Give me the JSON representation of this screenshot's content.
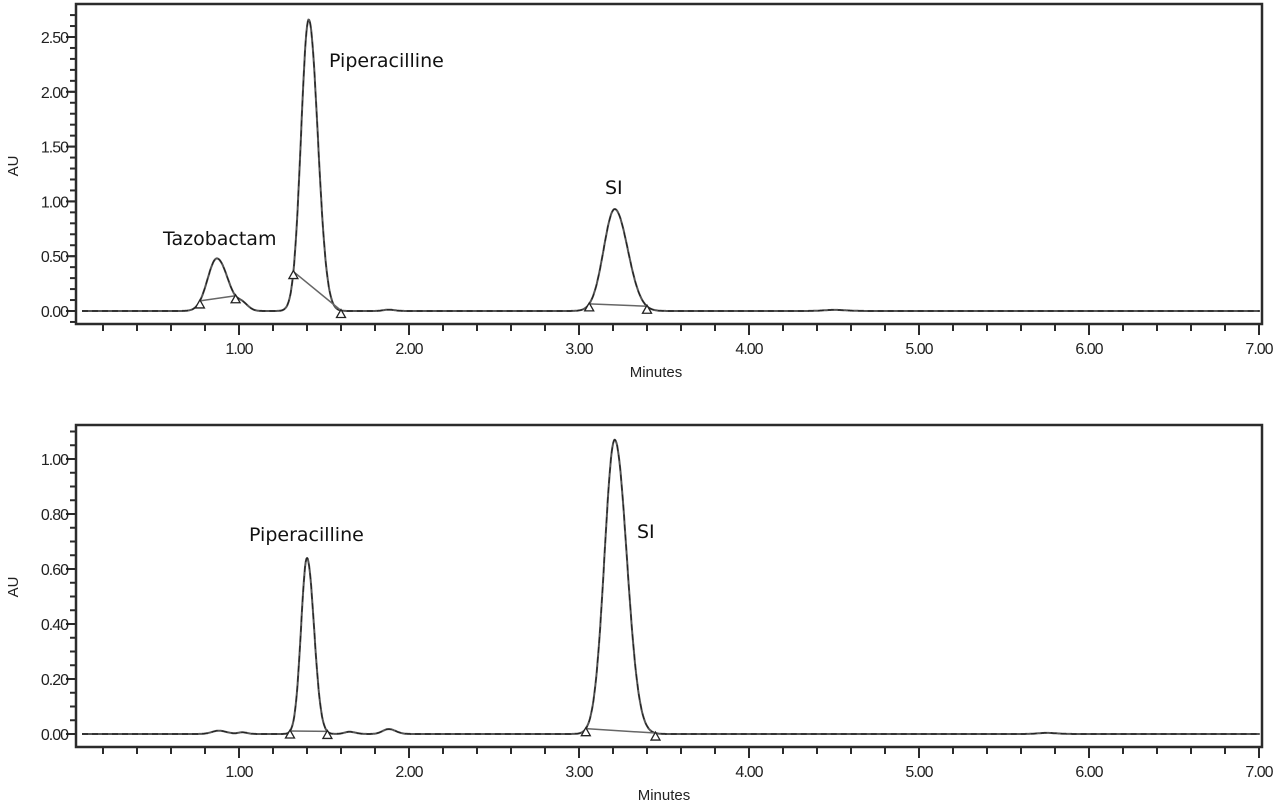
{
  "chart_data": [
    {
      "type": "line",
      "panel": "top",
      "title": "",
      "xlabel": "Minutes",
      "ylabel": "AU",
      "xlim": [
        0.04,
        7.02
      ],
      "ylim": [
        -0.12,
        2.78
      ],
      "x_ticks": [
        "1.00",
        "2.00",
        "3.00",
        "4.00",
        "5.00",
        "6.00",
        "7.00"
      ],
      "x_tick_values": [
        1,
        2,
        3,
        4,
        5,
        6,
        7
      ],
      "x_minor_step": 0.2,
      "y_ticks": [
        "0.00",
        "0.50",
        "1.00",
        "1.50",
        "2.00",
        "2.50"
      ],
      "y_tick_values": [
        0,
        0.5,
        1.0,
        1.5,
        2.0,
        2.5
      ],
      "y_minor_step": 0.1,
      "grid": false,
      "peaks": [
        {
          "name": "Tazobactam",
          "retention_time": 0.87,
          "height": 0.48,
          "width": 0.055,
          "label": "Tazobactam",
          "label_pos": [
            0.6,
            0.64
          ],
          "integration_markers": [
            0.77,
            0.98
          ]
        },
        {
          "name": "minor",
          "retention_time": 1.02,
          "height": 0.06,
          "width": 0.03
        },
        {
          "name": "Piperacilline",
          "retention_time": 1.41,
          "height": 2.66,
          "width": 0.045,
          "label": "Piperacilline",
          "label_pos": [
            1.55,
            2.25
          ],
          "integration_markers": [
            1.32,
            1.6
          ]
        },
        {
          "name": "SI",
          "retention_time": 3.21,
          "height": 0.93,
          "width": 0.065,
          "label": "SI",
          "label_pos": [
            3.17,
            1.1
          ],
          "integration_markers": [
            3.06,
            3.4
          ]
        },
        {
          "name": "minor",
          "retention_time": 1.88,
          "height": 0.012,
          "width": 0.03
        },
        {
          "name": "minor",
          "retention_time": 4.5,
          "height": 0.01,
          "width": 0.06
        }
      ]
    },
    {
      "type": "line",
      "panel": "bottom",
      "title": "",
      "xlabel": "Minutes",
      "ylabel": "AU",
      "xlim": [
        0.04,
        7.02
      ],
      "ylim": [
        -0.05,
        1.12
      ],
      "x_ticks": [
        "1.00",
        "2.00",
        "3.00",
        "4.00",
        "5.00",
        "6.00",
        "7.00"
      ],
      "x_tick_values": [
        1,
        2,
        3,
        4,
        5,
        6,
        7
      ],
      "x_minor_step": 0.2,
      "y_ticks": [
        "0.00",
        "0.20",
        "0.40",
        "0.60",
        "0.80",
        "1.00"
      ],
      "y_tick_values": [
        0,
        0.2,
        0.4,
        0.6,
        0.8,
        1.0
      ],
      "y_minor_step": 0.05,
      "grid": false,
      "peaks": [
        {
          "name": "minor",
          "retention_time": 0.88,
          "height": 0.012,
          "width": 0.04
        },
        {
          "name": "minor",
          "retention_time": 1.02,
          "height": 0.006,
          "width": 0.025
        },
        {
          "name": "Piperacilline",
          "retention_time": 1.4,
          "height": 0.64,
          "width": 0.035,
          "label": "Piperacilline",
          "label_pos": [
            1.08,
            0.73
          ],
          "integration_markers": [
            1.3,
            1.52
          ]
        },
        {
          "name": "minor",
          "retention_time": 1.65,
          "height": 0.008,
          "width": 0.03
        },
        {
          "name": "minor",
          "retention_time": 1.88,
          "height": 0.018,
          "width": 0.035
        },
        {
          "name": "SI",
          "retention_time": 3.21,
          "height": 1.07,
          "width": 0.06,
          "label": "SI",
          "label_pos": [
            3.43,
            0.77
          ],
          "integration_markers": [
            3.04,
            3.45
          ]
        },
        {
          "name": "minor",
          "retention_time": 5.75,
          "height": 0.004,
          "width": 0.05
        }
      ]
    }
  ],
  "labels": {
    "top_ylabel": "AU",
    "top_xlabel": "Minutes",
    "bottom_ylabel": "AU",
    "bottom_xlabel": "Minutes",
    "tazobactam": "Tazobactam",
    "top_piperacilline": "Piperacilline",
    "top_si": "SI",
    "bottom_piperacilline": "Piperacilline",
    "bottom_si": "SI"
  }
}
